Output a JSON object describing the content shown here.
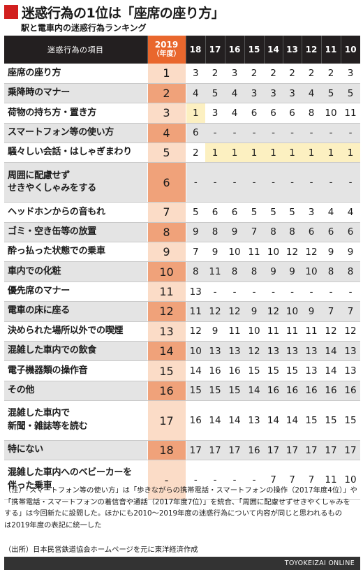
{
  "title": "迷惑行為の1位は「座席の座り方」",
  "subtitle": "駅と電車内の迷惑行為ランキング",
  "header": {
    "item_label": "迷惑行為の項目",
    "year_main": "2019",
    "year_sub": "（年度）"
  },
  "chart_data": {
    "type": "table",
    "columns": [
      "2019",
      "18",
      "17",
      "16",
      "15",
      "14",
      "13",
      "12",
      "11",
      "10"
    ],
    "rows": [
      {
        "lines": [
          "座席の座り方"
        ],
        "rank": "1",
        "values": [
          "3",
          "2",
          "3",
          "2",
          "2",
          "2",
          "2",
          "2",
          "3"
        ]
      },
      {
        "lines": [
          "乗降時のマナー"
        ],
        "rank": "2",
        "values": [
          "4",
          "5",
          "4",
          "3",
          "3",
          "3",
          "4",
          "5",
          "5"
        ]
      },
      {
        "lines": [
          "荷物の持ち方・置き方"
        ],
        "rank": "3",
        "values": [
          "1",
          "3",
          "4",
          "6",
          "6",
          "6",
          "8",
          "10",
          "11"
        ]
      },
      {
        "lines": [
          "スマートフォン等の使い方"
        ],
        "rank": "4",
        "values": [
          "6",
          "-",
          "-",
          "-",
          "-",
          "-",
          "-",
          "-",
          "-"
        ]
      },
      {
        "lines": [
          "騒々しい会話・はしゃぎまわり"
        ],
        "rank": "5",
        "values": [
          "2",
          "1",
          "1",
          "1",
          "1",
          "1",
          "1",
          "1",
          "1"
        ]
      },
      {
        "lines": [
          "周囲に配慮せず",
          "せきやくしゃみをする"
        ],
        "rank": "6",
        "values": [
          "-",
          "-",
          "-",
          "-",
          "-",
          "-",
          "-",
          "-",
          "-"
        ]
      },
      {
        "lines": [
          "ヘッドホンからの音もれ"
        ],
        "rank": "7",
        "values": [
          "5",
          "6",
          "6",
          "5",
          "5",
          "5",
          "3",
          "4",
          "4"
        ]
      },
      {
        "lines": [
          "ゴミ・空き缶等の放置"
        ],
        "rank": "8",
        "values": [
          "9",
          "8",
          "9",
          "7",
          "8",
          "8",
          "6",
          "6",
          "6"
        ]
      },
      {
        "lines": [
          "酔っ払った状態での乗車"
        ],
        "rank": "9",
        "values": [
          "7",
          "9",
          "10",
          "11",
          "10",
          "12",
          "12",
          "9",
          "9"
        ]
      },
      {
        "lines": [
          "車内での化粧"
        ],
        "rank": "10",
        "values": [
          "8",
          "11",
          "8",
          "8",
          "9",
          "9",
          "10",
          "8",
          "8"
        ]
      },
      {
        "lines": [
          "優先席のマナー"
        ],
        "rank": "11",
        "values": [
          "13",
          "-",
          "-",
          "-",
          "-",
          "-",
          "-",
          "-",
          "-"
        ]
      },
      {
        "lines": [
          "電車の床に座る"
        ],
        "rank": "12",
        "values": [
          "11",
          "12",
          "12",
          "9",
          "12",
          "10",
          "9",
          "7",
          "7"
        ]
      },
      {
        "lines": [
          "決められた場所以外での喫煙"
        ],
        "rank": "13",
        "values": [
          "12",
          "9",
          "11",
          "10",
          "11",
          "11",
          "11",
          "12",
          "12"
        ]
      },
      {
        "lines": [
          "混雑した車内での飲食"
        ],
        "rank": "14",
        "values": [
          "10",
          "13",
          "13",
          "12",
          "13",
          "13",
          "13",
          "14",
          "13"
        ]
      },
      {
        "lines": [
          "電子機器類の操作音"
        ],
        "rank": "15",
        "values": [
          "14",
          "16",
          "16",
          "15",
          "15",
          "15",
          "13",
          "14",
          "13"
        ]
      },
      {
        "lines": [
          "その他"
        ],
        "rank": "16",
        "values": [
          "15",
          "15",
          "15",
          "14",
          "16",
          "16",
          "16",
          "16",
          "16"
        ]
      },
      {
        "lines": [
          "混雑した車内で",
          "新聞・雑誌等を読む"
        ],
        "rank": "17",
        "values": [
          "16",
          "14",
          "14",
          "13",
          "14",
          "14",
          "15",
          "15",
          "15"
        ]
      },
      {
        "lines": [
          "特にない"
        ],
        "rank": "18",
        "values": [
          "17",
          "17",
          "17",
          "16",
          "17",
          "17",
          "17",
          "17",
          "17"
        ]
      },
      {
        "lines": [
          "混雑した車内へのベビーカーを",
          "伴った乗車"
        ],
        "rank": "-",
        "values": [
          "-",
          "-",
          "-",
          "-",
          "7",
          "7",
          "7",
          "11",
          "10"
        ]
      }
    ]
  },
  "notes": [
    "（注）「スマートフォン等の使い方」は「歩きながらの携帯電話・スマートフォンの操作（2017年度4位）」や",
    "「携帯電話・スマートフォンの着信音や通話（2017年度7位）」を統合、「周囲に配慮せずせきやくしゃみを",
    "する」は今回新たに設問した。ほかにも2010～2019年度の迷惑行為について内容が同じと思われるもの",
    "は2019年度の表記に統一した"
  ],
  "source": "（出所）日本民営鉄道協会ホームページを元に東洋経済作成",
  "footer": "TOYOKEIZAI ONLINE",
  "colors": {
    "title_square": "#d2201f",
    "header_bg": "#231f20",
    "header_2019": "#e9672d",
    "rank_light": "#fbdcc7",
    "rank_dark": "#f0a27a",
    "first_place": "#fcf0c1",
    "row_alt": "#e4e4e4"
  }
}
